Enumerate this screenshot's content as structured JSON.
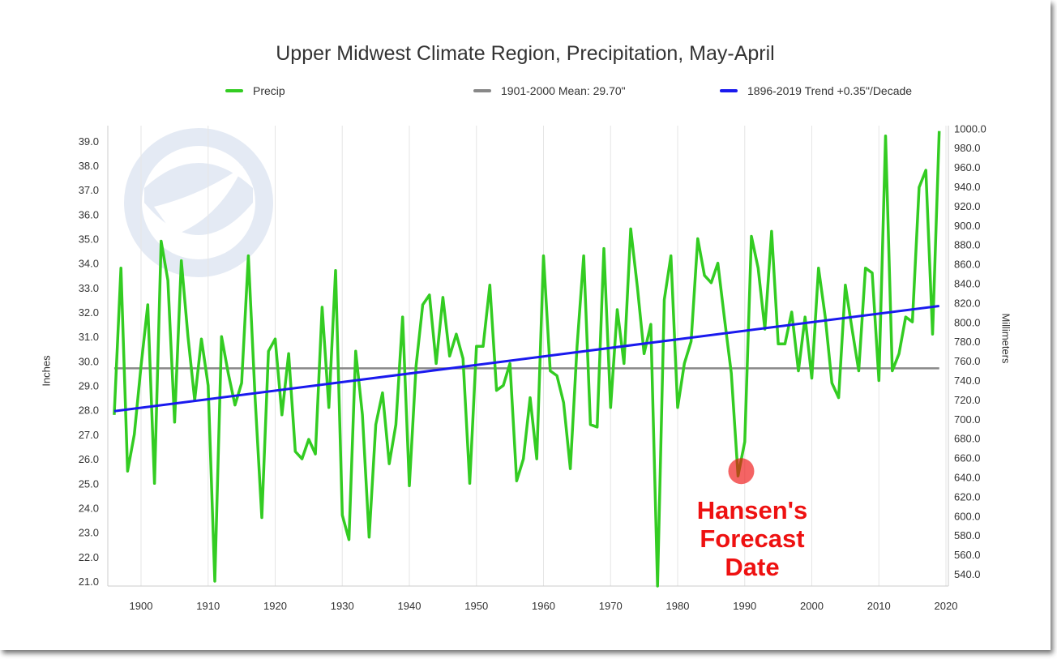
{
  "chart_data": {
    "type": "line",
    "title": "Upper Midwest Climate Region, Precipitation, May-April",
    "ylabel": "Inches",
    "y2label": "Millimeters",
    "ylim": [
      20.8,
      39.6
    ],
    "xlim": [
      1895,
      2020.5
    ],
    "x_ticks": [
      "1900",
      "1910",
      "1920",
      "1930",
      "1940",
      "1950",
      "1960",
      "1970",
      "1980",
      "1990",
      "2000",
      "2010",
      "2020"
    ],
    "y_ticks": [
      "21.0",
      "22.0",
      "23.0",
      "24.0",
      "25.0",
      "26.0",
      "27.0",
      "28.0",
      "29.0",
      "30.0",
      "31.0",
      "32.0",
      "33.0",
      "34.0",
      "35.0",
      "36.0",
      "37.0",
      "38.0",
      "39.0"
    ],
    "y2_ticks": [
      "540.0",
      "560.0",
      "580.0",
      "600.0",
      "620.0",
      "640.0",
      "660.0",
      "680.0",
      "700.0",
      "720.0",
      "740.0",
      "760.0",
      "780.0",
      "800.0",
      "820.0",
      "840.0",
      "860.0",
      "880.0",
      "900.0",
      "920.0",
      "940.0",
      "960.0",
      "980.0",
      "1000.0"
    ],
    "colors": {
      "precip": "#33cc22",
      "mean": "#888888",
      "trend": "#1a1aee",
      "annotation": "#ee1111"
    },
    "legend_placement": "top",
    "series": [
      {
        "name": "Precip",
        "x": [
          1896,
          1897,
          1898,
          1899,
          1900,
          1901,
          1902,
          1903,
          1904,
          1905,
          1906,
          1907,
          1908,
          1909,
          1910,
          1911,
          1912,
          1913,
          1914,
          1915,
          1916,
          1917,
          1918,
          1919,
          1920,
          1921,
          1922,
          1923,
          1924,
          1925,
          1926,
          1927,
          1928,
          1929,
          1930,
          1931,
          1932,
          1933,
          1934,
          1935,
          1936,
          1937,
          1938,
          1939,
          1940,
          1941,
          1942,
          1943,
          1944,
          1945,
          1946,
          1947,
          1948,
          1949,
          1950,
          1951,
          1952,
          1953,
          1954,
          1955,
          1956,
          1957,
          1958,
          1959,
          1960,
          1961,
          1962,
          1963,
          1964,
          1965,
          1966,
          1967,
          1968,
          1969,
          1970,
          1971,
          1972,
          1973,
          1974,
          1975,
          1976,
          1977,
          1978,
          1979,
          1980,
          1981,
          1982,
          1983,
          1984,
          1985,
          1986,
          1987,
          1988,
          1989,
          1990,
          1991,
          1992,
          1993,
          1994,
          1995,
          1996,
          1997,
          1998,
          1999,
          2000,
          2001,
          2002,
          2003,
          2004,
          2005,
          2006,
          2007,
          2008,
          2009,
          2010,
          2011,
          2012,
          2013,
          2014,
          2015,
          2016,
          2017,
          2018,
          2019
        ],
        "values": [
          27.8,
          33.8,
          25.5,
          27.0,
          29.8,
          32.3,
          25.0,
          34.9,
          33.3,
          27.5,
          34.1,
          31.0,
          28.4,
          30.9,
          29.0,
          21.0,
          31.0,
          29.5,
          28.2,
          29.1,
          34.3,
          28.5,
          23.6,
          30.4,
          30.9,
          27.8,
          30.3,
          26.3,
          26.0,
          26.8,
          26.2,
          32.2,
          28.1,
          33.7,
          23.7,
          22.7,
          30.4,
          27.8,
          22.8,
          27.4,
          28.7,
          25.8,
          27.4,
          31.8,
          24.9,
          29.8,
          32.3,
          32.7,
          29.9,
          32.6,
          30.2,
          31.1,
          30.1,
          25.0,
          30.6,
          30.6,
          33.1,
          28.8,
          29.0,
          29.9,
          25.1,
          26.0,
          28.5,
          26.0,
          34.3,
          29.6,
          29.4,
          28.3,
          25.6,
          30.6,
          34.3,
          27.4,
          27.3,
          34.6,
          28.1,
          32.1,
          29.9,
          35.4,
          33.0,
          30.3,
          31.5,
          20.8,
          32.5,
          34.3,
          28.1,
          29.9,
          30.8,
          35.0,
          33.5,
          33.2,
          34.0,
          31.7,
          29.5,
          25.3,
          26.7,
          35.1,
          33.8,
          31.3,
          35.3,
          30.7,
          30.7,
          32.0,
          29.6,
          31.8,
          29.3,
          33.8,
          31.8,
          29.1,
          28.5,
          33.1,
          31.3,
          29.6,
          33.8,
          33.6,
          29.2,
          39.2,
          29.6,
          30.3,
          31.8,
          31.6,
          37.1,
          37.8,
          31.1,
          39.4
        ]
      },
      {
        "name": "1901-2000 Mean: 29.70\"",
        "x": [
          1896,
          2019
        ],
        "values": [
          29.7,
          29.7
        ]
      },
      {
        "name": "1896-2019 Trend +0.35\"/Decade",
        "x": [
          1896,
          2019
        ],
        "values": [
          27.95,
          32.25
        ]
      }
    ],
    "annotations": [
      {
        "lines": [
          "Hansen's",
          "Forecast",
          "Date"
        ],
        "x": 1989,
        "y": 25.3
      }
    ]
  }
}
